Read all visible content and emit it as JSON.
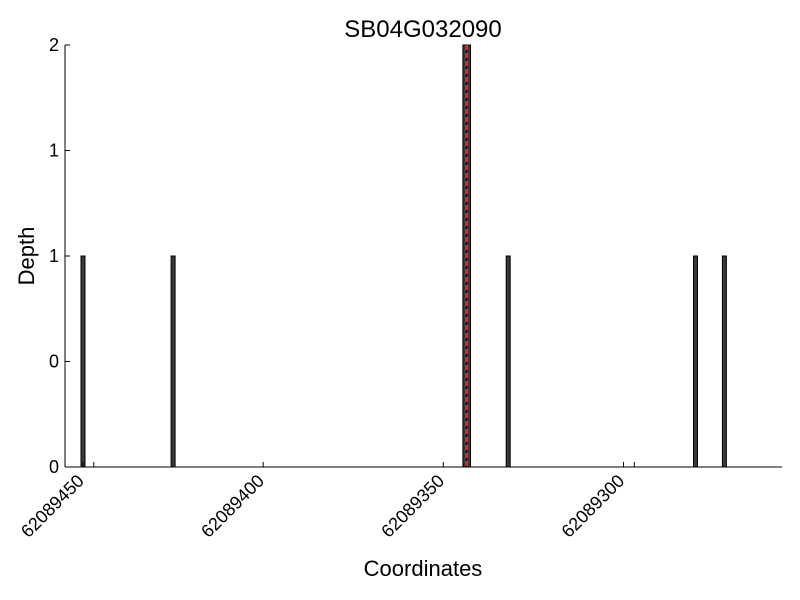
{
  "chart_data": {
    "type": "bar",
    "title": "SB04G032090",
    "xlabel": "Coordinates",
    "ylabel": "Depth",
    "x_axis_reversed": true,
    "xlim": [
      62089455,
      62089256
    ],
    "ylim": [
      0,
      2
    ],
    "x_ticks": [
      62089450,
      62089400,
      62089350,
      62089300
    ],
    "x_tick_labels": [
      "62089450",
      "62089400",
      "62089350",
      "62089300"
    ],
    "y_ticks": [
      0,
      0.5,
      1,
      1.5,
      2
    ],
    "y_tick_labels": [
      "0",
      "0",
      "1",
      "1",
      "2"
    ],
    "grid": false,
    "bar_color": "#3a3a3a",
    "highlight_color": "#e8231f",
    "series": [
      {
        "x": [
          62089450,
          62089425,
          62089344,
          62089343,
          62089332,
          62089280,
          62089272
        ],
        "values": [
          1,
          1,
          2,
          2,
          1,
          1,
          1
        ]
      }
    ],
    "highlight_x": 62089343.5
  }
}
